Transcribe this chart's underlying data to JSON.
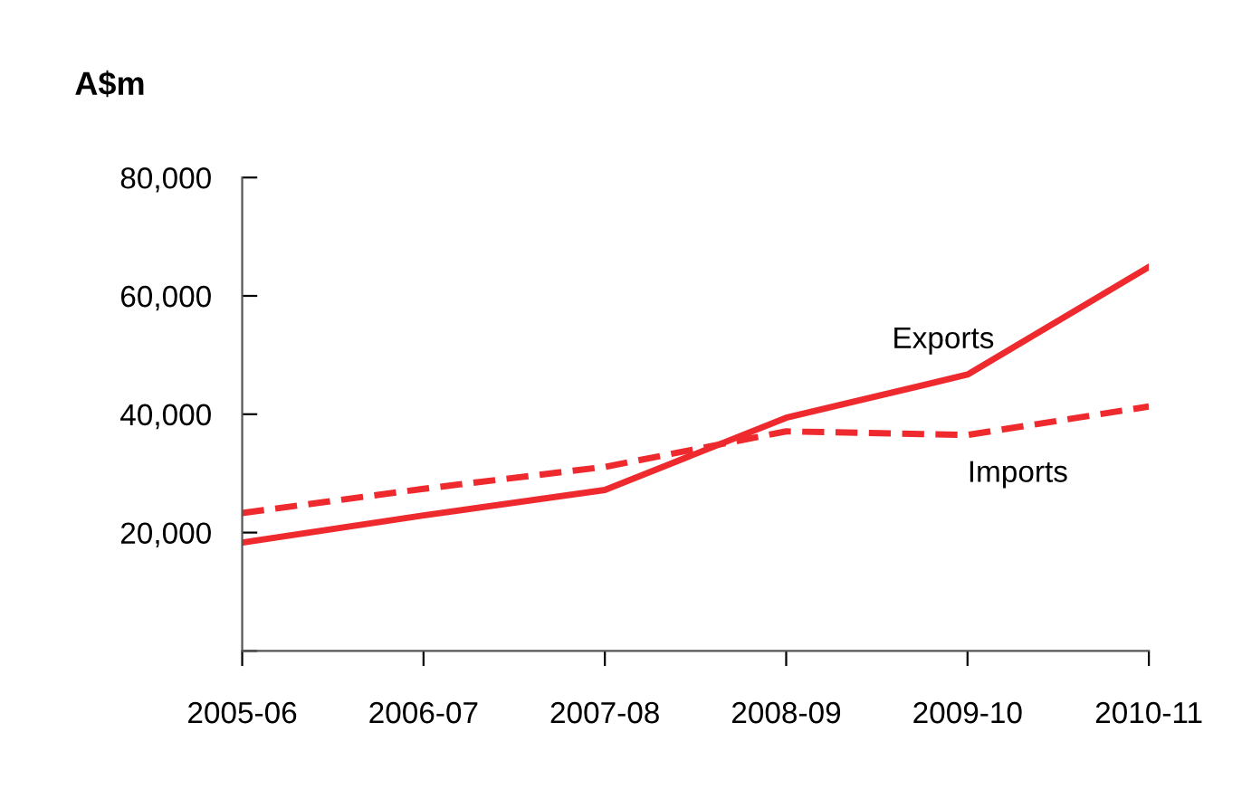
{
  "chart_data": {
    "type": "line",
    "ylabel": "A$m",
    "categories": [
      "2005-06",
      "2006-07",
      "2007-08",
      "2008-09",
      "2009-10",
      "2010-11"
    ],
    "series": [
      {
        "name": "Exports",
        "color": "#ee2a2e",
        "line_style": "solid",
        "values": [
          18300,
          22900,
          27200,
          39400,
          46700,
          64900
        ]
      },
      {
        "name": "Imports",
        "color": "#ee2a2e",
        "line_style": "dashed",
        "values": [
          23300,
          27400,
          31100,
          37100,
          36500,
          41300
        ]
      }
    ],
    "ylim": [
      0,
      80000
    ],
    "yticks": [
      {
        "value": 0,
        "label": null
      },
      {
        "value": 20000,
        "label": "20,000"
      },
      {
        "value": 40000,
        "label": "40,000"
      },
      {
        "value": 60000,
        "label": "60,000"
      },
      {
        "value": 80000,
        "label": "80,000"
      }
    ],
    "grid": false,
    "legend": false,
    "marker": "none"
  }
}
